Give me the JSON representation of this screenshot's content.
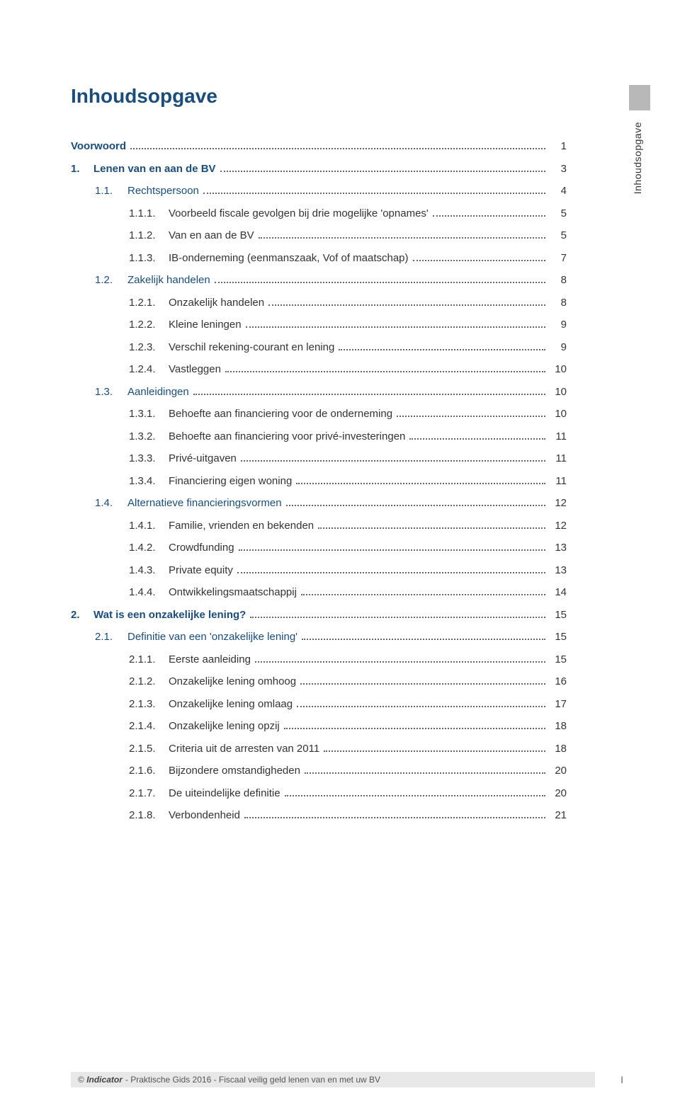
{
  "title": "Inhoudsopgave",
  "side_tab": "Inhoudsopgave",
  "colors": {
    "heading": "#1a4d7a",
    "text": "#333333",
    "tab_bg": "#b8b8b8",
    "footer_bg": "#e8e8e8"
  },
  "toc": [
    {
      "level": 0,
      "num": "",
      "label": "Voorwoord",
      "page": "1"
    },
    {
      "level": 1,
      "num": "1.",
      "label": "Lenen van en aan de BV",
      "page": "3"
    },
    {
      "level": 2,
      "num": "1.1.",
      "label": "Rechtspersoon",
      "page": "4"
    },
    {
      "level": 3,
      "num": "1.1.1.",
      "label": "Voorbeeld fiscale gevolgen bij drie mogelijke 'opnames'",
      "page": "5"
    },
    {
      "level": 3,
      "num": "1.1.2.",
      "label": "Van en aan de BV",
      "page": "5"
    },
    {
      "level": 3,
      "num": "1.1.3.",
      "label": "IB-onderneming (eenmanszaak, Vof of maatschap)",
      "page": "7"
    },
    {
      "level": 2,
      "num": "1.2.",
      "label": "Zakelijk handelen",
      "page": "8"
    },
    {
      "level": 3,
      "num": "1.2.1.",
      "label": "Onzakelijk handelen",
      "page": "8"
    },
    {
      "level": 3,
      "num": "1.2.2.",
      "label": "Kleine leningen",
      "page": "9"
    },
    {
      "level": 3,
      "num": "1.2.3.",
      "label": "Verschil rekening-courant en lening",
      "page": "9"
    },
    {
      "level": 3,
      "num": "1.2.4.",
      "label": "Vastleggen",
      "page": "10"
    },
    {
      "level": 2,
      "num": "1.3.",
      "label": "Aanleidingen",
      "page": "10"
    },
    {
      "level": 3,
      "num": "1.3.1.",
      "label": "Behoefte aan financiering voor de onderneming",
      "page": "10"
    },
    {
      "level": 3,
      "num": "1.3.2.",
      "label": "Behoefte aan financiering voor privé-investeringen",
      "page": "11"
    },
    {
      "level": 3,
      "num": "1.3.3.",
      "label": "Privé-uitgaven",
      "page": "11"
    },
    {
      "level": 3,
      "num": "1.3.4.",
      "label": "Financiering eigen woning",
      "page": "11"
    },
    {
      "level": 2,
      "num": "1.4.",
      "label": "Alternatieve financieringsvormen",
      "page": "12"
    },
    {
      "level": 3,
      "num": "1.4.1.",
      "label": "Familie, vrienden en bekenden",
      "page": "12"
    },
    {
      "level": 3,
      "num": "1.4.2.",
      "label": "Crowdfunding",
      "page": "13"
    },
    {
      "level": 3,
      "num": "1.4.3.",
      "label": "Private equity",
      "page": "13"
    },
    {
      "level": 3,
      "num": "1.4.4.",
      "label": "Ontwikkelingsmaatschappij",
      "page": "14"
    },
    {
      "level": 1,
      "num": "2.",
      "label": "Wat is een onzakelijke lening?",
      "page": "15"
    },
    {
      "level": 2,
      "num": "2.1.",
      "label": "Definitie van een 'onzakelijke lening'",
      "page": "15"
    },
    {
      "level": 3,
      "num": "2.1.1.",
      "label": "Eerste aanleiding",
      "page": "15"
    },
    {
      "level": 3,
      "num": "2.1.2.",
      "label": "Onzakelijke lening omhoog",
      "page": "16"
    },
    {
      "level": 3,
      "num": "2.1.3.",
      "label": "Onzakelijke lening omlaag",
      "page": "17"
    },
    {
      "level": 3,
      "num": "2.1.4.",
      "label": "Onzakelijke lening opzij",
      "page": "18"
    },
    {
      "level": 3,
      "num": "2.1.5.",
      "label": "Criteria uit de arresten van 2011",
      "page": "18"
    },
    {
      "level": 3,
      "num": "2.1.6.",
      "label": "Bijzondere omstandigheden",
      "page": "20"
    },
    {
      "level": 3,
      "num": "2.1.7.",
      "label": "De uiteindelijke definitie",
      "page": "20"
    },
    {
      "level": 3,
      "num": "2.1.8.",
      "label": "Verbondenheid",
      "page": "21"
    }
  ],
  "footer": {
    "publisher": "Indicator",
    "text": " - Praktische Gids 2016 - Fiscaal veilig geld lenen van en met uw BV",
    "page_num": "I"
  }
}
